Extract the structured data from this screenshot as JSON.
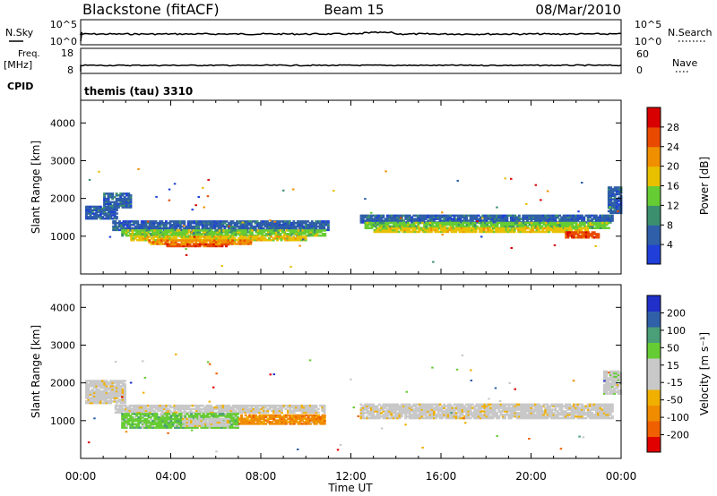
{
  "header": {
    "station": "Blackstone (fitACF)",
    "beam": "Beam 15",
    "date": "08/Mar/2010"
  },
  "top_panels": {
    "nsky_label": "N.Sky",
    "nsky_ticks": [
      "10^5",
      "10^0"
    ],
    "nsearch_label": "N.Search",
    "nsearch_ticks": [
      "10^5",
      "10^0"
    ],
    "freq_label": "Freq.",
    "freq_unit": "[MHz]",
    "freq_ticks": [
      "18",
      "8"
    ],
    "nave_label": "Nave",
    "nave_ticks": [
      "60",
      "0"
    ],
    "cpid_label": "CPID",
    "cpid_value": "themis (tau) 3310"
  },
  "colors": {
    "power": [
      "#1f3fd8",
      "#2f5fa8",
      "#3b8f6f",
      "#66cc33",
      "#e8c000",
      "#f09000",
      "#e84a00",
      "#d80000"
    ],
    "velocity": [
      "#e00000",
      "#f06000",
      "#f08c00",
      "#f0b000",
      "#c8c8c8",
      "#c8c8c8",
      "#66cc33",
      "#4a9e78",
      "#3060a8",
      "#2030c8"
    ]
  },
  "chart_data": [
    {
      "type": "heatmap",
      "name": "power",
      "ylabel": "Slant Range [km]",
      "ylim": [
        0,
        4600
      ],
      "yticks": [
        1000,
        2000,
        3000,
        4000
      ],
      "xlim": [
        0,
        24
      ],
      "colorbar_label": "Power [dB]",
      "colorbar_ticks": [
        "4",
        "8",
        "12",
        "16",
        "20",
        "24",
        "28"
      ],
      "bands": [
        {
          "t0": 0.2,
          "t1": 1.6,
          "r0": 1450,
          "r1": 1800,
          "level": 1
        },
        {
          "t0": 1.0,
          "t1": 2.2,
          "r0": 1750,
          "r1": 2150,
          "level": 1
        },
        {
          "t0": 1.4,
          "t1": 11.0,
          "r0": 1150,
          "r1": 1400,
          "level": 1
        },
        {
          "t0": 1.8,
          "t1": 10.8,
          "r0": 1000,
          "r1": 1150,
          "level": 3
        },
        {
          "t0": 2.2,
          "t1": 10.0,
          "r0": 880,
          "r1": 1000,
          "level": 4
        },
        {
          "t0": 3.0,
          "t1": 7.5,
          "r0": 780,
          "r1": 880,
          "level": 5
        },
        {
          "t0": 3.8,
          "t1": 6.5,
          "r0": 720,
          "r1": 800,
          "level": 6
        },
        {
          "t0": 12.4,
          "t1": 23.6,
          "r0": 1350,
          "r1": 1550,
          "level": 1
        },
        {
          "t0": 12.6,
          "t1": 23.4,
          "r0": 1200,
          "r1": 1350,
          "level": 3
        },
        {
          "t0": 13.0,
          "t1": 22.5,
          "r0": 1100,
          "r1": 1200,
          "level": 4
        },
        {
          "t0": 21.5,
          "t1": 23.0,
          "r0": 950,
          "r1": 1100,
          "level": 6
        },
        {
          "t0": 23.4,
          "t1": 24.0,
          "r0": 1600,
          "r1": 2300,
          "level": 1
        }
      ]
    },
    {
      "type": "heatmap",
      "name": "velocity",
      "ylabel": "Slant Range [km]",
      "ylim": [
        0,
        4600
      ],
      "yticks": [
        1000,
        2000,
        3000,
        4000
      ],
      "xlim": [
        0,
        24
      ],
      "xticks": [
        "00:00",
        "04:00",
        "08:00",
        "12:00",
        "16:00",
        "20:00",
        "00:00"
      ],
      "xlabel": "Time UT",
      "colorbar_label": "Velocity [m s⁻¹]",
      "colorbar_ticks": [
        "-200",
        "-100",
        "-50",
        "-15",
        "15",
        "50",
        "100",
        "200"
      ],
      "bands": [
        {
          "t0": 0.2,
          "t1": 2.0,
          "r0": 1450,
          "r1": 2050,
          "level": 4
        },
        {
          "t0": 1.5,
          "t1": 10.8,
          "r0": 1200,
          "r1": 1400,
          "level": 4
        },
        {
          "t0": 1.8,
          "t1": 7.0,
          "r0": 800,
          "r1": 1200,
          "level": 6
        },
        {
          "t0": 7.0,
          "t1": 10.8,
          "r0": 900,
          "r1": 1150,
          "level": 2
        },
        {
          "t0": 4.5,
          "t1": 6.5,
          "r0": 850,
          "r1": 1050,
          "level": 4
        },
        {
          "t0": 12.4,
          "t1": 23.6,
          "r0": 1050,
          "r1": 1450,
          "level": 4
        },
        {
          "t0": 23.2,
          "t1": 24.0,
          "r0": 1700,
          "r1": 2300,
          "level": 5
        }
      ]
    }
  ]
}
